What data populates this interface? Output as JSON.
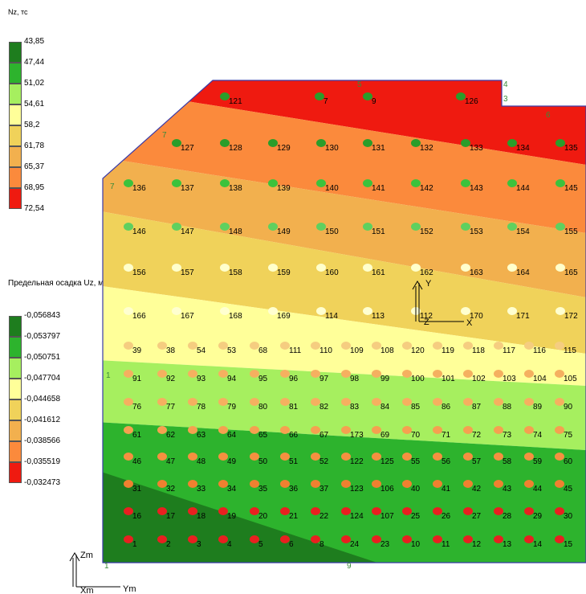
{
  "legend_nz": {
    "title": "Nz, тс",
    "labels": [
      "43,85",
      "47,44",
      "51,02",
      "54,61",
      "58,2",
      "61,78",
      "65,37",
      "68,95",
      "72,54"
    ],
    "colors": [
      "#1e7d1e",
      "#2db32d",
      "#a6ef5f",
      "#ffff99",
      "#f0d25a",
      "#f2b04e",
      "#fb8a3c",
      "#ef1a10"
    ]
  },
  "legend_uz": {
    "title": "Предельная осадка Uz, м",
    "labels": [
      "-0,056843",
      "-0,053797",
      "-0,050751",
      "-0,047704",
      "-0,044658",
      "-0,041612",
      "-0,038566",
      "-0,035519",
      "-0,032473"
    ],
    "colors": [
      "#1e7d1e",
      "#2db32d",
      "#a6ef5f",
      "#ffff99",
      "#f0d25a",
      "#f2b04e",
      "#fb8a3c",
      "#ef1a10"
    ]
  },
  "corner_labels": [
    "5",
    "4",
    "3",
    "6",
    "7",
    "7",
    "1",
    "1",
    "9"
  ],
  "axes_local": {
    "y": "Y",
    "z": "Z",
    "x": "X"
  },
  "axes_global": {
    "z": "Zm",
    "x": "Xm",
    "y": "Ym"
  },
  "rows": [
    {
      "pile_color": "#2a9d2a",
      "ids": [
        "121",
        "7",
        "9",
        "126"
      ]
    },
    {
      "pile_color": "#2a9d2a",
      "ids": [
        "127",
        "128",
        "129",
        "130",
        "131",
        "132",
        "133",
        "134",
        "135"
      ]
    },
    {
      "pile_color": "#3cc23c",
      "ids": [
        "136",
        "137",
        "138",
        "139",
        "140",
        "141",
        "142",
        "143",
        "144",
        "145"
      ]
    },
    {
      "pile_color": "#5fd05f",
      "ids": [
        "146",
        "147",
        "148",
        "149",
        "150",
        "151",
        "152",
        "153",
        "154",
        "155"
      ]
    },
    {
      "pile_color": "#ffffcc",
      "ids": [
        "156",
        "157",
        "158",
        "159",
        "160",
        "161",
        "162",
        "163",
        "164",
        "165"
      ]
    },
    {
      "pile_color": "#ffffd0",
      "ids": [
        "166",
        "167",
        "168",
        "169",
        "114",
        "113",
        "112",
        "170",
        "171",
        "172"
      ]
    },
    {
      "pile_color": "#f5cd80",
      "ids": [
        "39",
        "38",
        "54",
        "53",
        "68",
        "111",
        "110",
        "109",
        "108",
        "120",
        "119",
        "118",
        "117",
        "116",
        "115"
      ]
    },
    {
      "pile_color": "#f5b060",
      "ids": [
        "91",
        "92",
        "93",
        "94",
        "95",
        "96",
        "97",
        "98",
        "99",
        "100",
        "101",
        "102",
        "103",
        "104",
        "105"
      ]
    },
    {
      "pile_color": "#f5b060",
      "ids": [
        "76",
        "77",
        "78",
        "79",
        "80",
        "81",
        "82",
        "83",
        "84",
        "85",
        "86",
        "87",
        "88",
        "89",
        "90"
      ]
    },
    {
      "pile_color": "#f5a050",
      "ids": [
        "61",
        "62",
        "63",
        "64",
        "65",
        "66",
        "67",
        "173",
        "69",
        "70",
        "71",
        "72",
        "73",
        "74",
        "75"
      ]
    },
    {
      "pile_color": "#f59040",
      "ids": [
        "46",
        "47",
        "48",
        "49",
        "50",
        "51",
        "52",
        "122",
        "125",
        "55",
        "56",
        "57",
        "58",
        "59",
        "60"
      ]
    },
    {
      "pile_color": "#f08030",
      "ids": [
        "31",
        "32",
        "33",
        "34",
        "35",
        "36",
        "37",
        "123",
        "106",
        "40",
        "41",
        "42",
        "43",
        "44",
        "45"
      ]
    },
    {
      "pile_color": "#e82020",
      "ids": [
        "16",
        "17",
        "18",
        "19",
        "20",
        "21",
        "22",
        "124",
        "107",
        "25",
        "26",
        "27",
        "28",
        "29",
        "30"
      ]
    },
    {
      "pile_color": "#e82020",
      "ids": [
        "1",
        "2",
        "3",
        "4",
        "5",
        "6",
        "8",
        "24",
        "23",
        "10",
        "11",
        "12",
        "13",
        "14",
        "15"
      ]
    }
  ]
}
